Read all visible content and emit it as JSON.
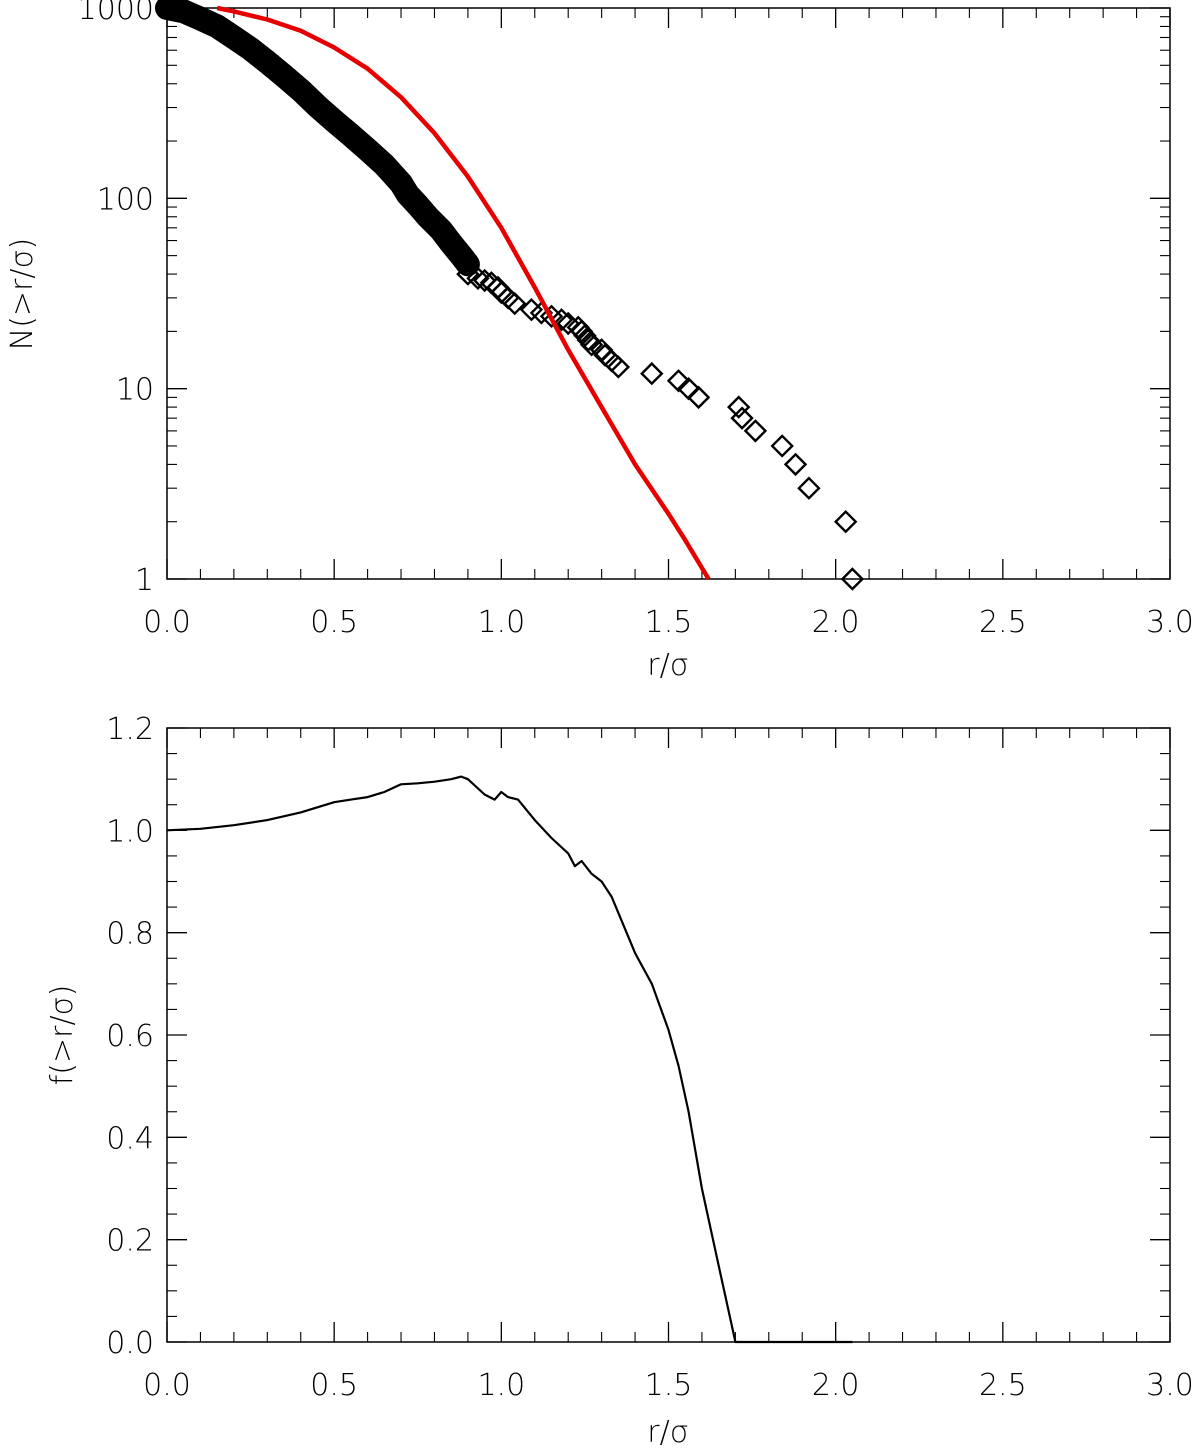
{
  "chart_data": [
    {
      "type": "scatter",
      "xlabel": "r/σ",
      "ylabel": "N(>r/σ)",
      "xlim": [
        0.0,
        3.0
      ],
      "ylim": [
        1,
        1000
      ],
      "yscale": "log",
      "grid": false,
      "x_ticks": [
        "0.0",
        "0.5",
        "1.0",
        "1.5",
        "2.0",
        "2.5",
        "3.0"
      ],
      "y_ticks": [
        "1",
        "10",
        "100",
        "1000"
      ],
      "series": [
        {
          "kind": "markers",
          "marker": "diamond",
          "color": "#000000",
          "points": [
            [
              0.9,
              40
            ],
            [
              0.93,
              38
            ],
            [
              0.95,
              37
            ],
            [
              0.97,
              36
            ],
            [
              0.99,
              34
            ],
            [
              1.0,
              32
            ],
            [
              1.02,
              30
            ],
            [
              1.04,
              28
            ],
            [
              1.09,
              26
            ],
            [
              1.12,
              25
            ],
            [
              1.15,
              24
            ],
            [
              1.18,
              23
            ],
            [
              1.2,
              22
            ],
            [
              1.23,
              21
            ],
            [
              1.24,
              20
            ],
            [
              1.25,
              19
            ],
            [
              1.26,
              18
            ],
            [
              1.27,
              17
            ],
            [
              1.3,
              16
            ],
            [
              1.31,
              15
            ],
            [
              1.33,
              14
            ],
            [
              1.35,
              13
            ],
            [
              1.45,
              12
            ],
            [
              1.53,
              11
            ],
            [
              1.56,
              10
            ],
            [
              1.59,
              9
            ],
            [
              1.71,
              8
            ],
            [
              1.72,
              7
            ],
            [
              1.76,
              6
            ],
            [
              1.84,
              5
            ],
            [
              1.88,
              4
            ],
            [
              1.92,
              3
            ],
            [
              2.03,
              2
            ],
            [
              2.05,
              1
            ]
          ],
          "dense_band": [
            [
              0.0,
              1000
            ],
            [
              0.05,
              960
            ],
            [
              0.1,
              880
            ],
            [
              0.15,
              800
            ],
            [
              0.2,
              700
            ],
            [
              0.25,
              610
            ],
            [
              0.3,
              520
            ],
            [
              0.35,
              440
            ],
            [
              0.4,
              370
            ],
            [
              0.45,
              305
            ],
            [
              0.5,
              255
            ],
            [
              0.55,
              215
            ],
            [
              0.6,
              180
            ],
            [
              0.65,
              150
            ],
            [
              0.7,
              120
            ],
            [
              0.72,
              105
            ],
            [
              0.75,
              92
            ],
            [
              0.78,
              80
            ],
            [
              0.82,
              68
            ],
            [
              0.85,
              58
            ],
            [
              0.88,
              50
            ],
            [
              0.9,
              45
            ]
          ]
        },
        {
          "kind": "line",
          "color": "#e60000",
          "points": [
            [
              0.15,
              1000
            ],
            [
              0.2,
              960
            ],
            [
              0.3,
              870
            ],
            [
              0.4,
              760
            ],
            [
              0.5,
              620
            ],
            [
              0.6,
              480
            ],
            [
              0.7,
              340
            ],
            [
              0.8,
              220
            ],
            [
              0.9,
              130
            ],
            [
              1.0,
              70
            ],
            [
              1.1,
              34
            ],
            [
              1.2,
              16
            ],
            [
              1.3,
              8
            ],
            [
              1.4,
              4
            ],
            [
              1.5,
              2.2
            ],
            [
              1.55,
              1.6
            ],
            [
              1.62,
              1
            ]
          ]
        }
      ]
    },
    {
      "type": "line",
      "xlabel": "r/σ",
      "ylabel": "f(>r/σ)",
      "xlim": [
        0.0,
        3.0
      ],
      "ylim": [
        0.0,
        1.2
      ],
      "yscale": "linear",
      "grid": false,
      "x_ticks": [
        "0.0",
        "0.5",
        "1.0",
        "1.5",
        "2.0",
        "2.5",
        "3.0"
      ],
      "y_ticks": [
        "0.0",
        "0.2",
        "0.4",
        "0.6",
        "0.8",
        "1.0",
        "1.2"
      ],
      "series": [
        {
          "kind": "line",
          "color": "#000000",
          "points": [
            [
              0.0,
              1.0
            ],
            [
              0.1,
              1.003
            ],
            [
              0.2,
              1.01
            ],
            [
              0.3,
              1.02
            ],
            [
              0.4,
              1.035
            ],
            [
              0.45,
              1.045
            ],
            [
              0.5,
              1.055
            ],
            [
              0.55,
              1.06
            ],
            [
              0.6,
              1.065
            ],
            [
              0.65,
              1.075
            ],
            [
              0.7,
              1.09
            ],
            [
              0.75,
              1.092
            ],
            [
              0.8,
              1.095
            ],
            [
              0.85,
              1.1
            ],
            [
              0.88,
              1.105
            ],
            [
              0.9,
              1.1
            ],
            [
              0.95,
              1.07
            ],
            [
              0.98,
              1.06
            ],
            [
              1.0,
              1.075
            ],
            [
              1.02,
              1.065
            ],
            [
              1.05,
              1.06
            ],
            [
              1.1,
              1.02
            ],
            [
              1.15,
              0.985
            ],
            [
              1.2,
              0.955
            ],
            [
              1.22,
              0.93
            ],
            [
              1.24,
              0.94
            ],
            [
              1.27,
              0.915
            ],
            [
              1.3,
              0.9
            ],
            [
              1.33,
              0.87
            ],
            [
              1.4,
              0.76
            ],
            [
              1.45,
              0.7
            ],
            [
              1.5,
              0.61
            ],
            [
              1.53,
              0.54
            ],
            [
              1.56,
              0.45
            ],
            [
              1.6,
              0.3
            ],
            [
              1.65,
              0.15
            ],
            [
              1.7,
              0.0
            ],
            [
              2.05,
              0.0
            ]
          ]
        }
      ]
    }
  ]
}
